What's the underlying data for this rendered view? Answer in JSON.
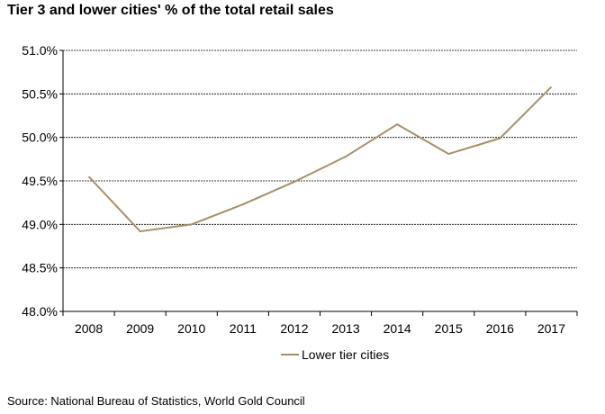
{
  "title": "Tier 3 and lower cities' % of the total retail sales",
  "source": "Source: National Bureau of Statistics, World Gold Council",
  "chart_data": {
    "type": "line",
    "title": "Tier 3 and lower cities' % of the total retail sales",
    "categories": [
      "2008",
      "2009",
      "2010",
      "2011",
      "2012",
      "2013",
      "2014",
      "2015",
      "2016",
      "2017"
    ],
    "series": [
      {
        "name": "Lower tier cities",
        "values": [
          49.55,
          48.92,
          49.0,
          49.23,
          49.49,
          49.78,
          50.15,
          49.81,
          49.99,
          50.58
        ],
        "color": "#A88F68"
      }
    ],
    "ylim": [
      48.0,
      51.0
    ],
    "yticks": [
      48.0,
      48.5,
      49.0,
      49.5,
      50.0,
      50.5,
      51.0
    ],
    "ytick_labels": [
      "48.0%",
      "48.5%",
      "49.0%",
      "49.5%",
      "50.0%",
      "50.5%",
      "51.0%"
    ],
    "grid": true,
    "legend": "bottom"
  }
}
